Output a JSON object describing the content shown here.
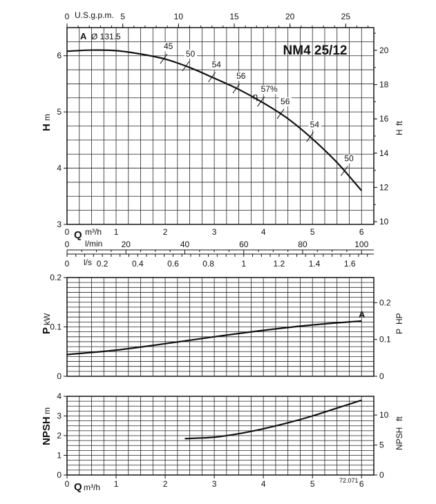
{
  "chart_data": [
    {
      "type": "line",
      "id": "head",
      "title": "NM4 25/12",
      "impeller_label": "A",
      "impeller_diameter": "Ø 131.5",
      "ylabel": "H",
      "yunit": "m",
      "ylim": [
        3,
        6.5
      ],
      "yticks": [
        "3",
        "4",
        "5",
        "6"
      ],
      "y2label": "H",
      "y2unit": "ft",
      "y2ticks": [
        "10",
        "12",
        "14",
        "16",
        "18",
        "20"
      ],
      "xlim": [
        0,
        6.25
      ],
      "top_axis_label": "U.S.g.p.m.",
      "top_axis_ticks": [
        "0",
        "5",
        "10",
        "15",
        "20",
        "25"
      ],
      "series": [
        {
          "name": "A",
          "x": [
            0,
            0.5,
            1.0,
            1.5,
            2.0,
            2.5,
            3.0,
            3.5,
            4.0,
            4.5,
            5.0,
            5.5,
            6.0
          ],
          "y": [
            6.08,
            6.1,
            6.09,
            6.03,
            5.94,
            5.79,
            5.6,
            5.4,
            5.16,
            4.88,
            4.52,
            4.1,
            3.6
          ]
        }
      ],
      "efficiency_label": "η",
      "efficiency_marks": [
        {
          "label": "45",
          "x": 1.97
        },
        {
          "label": "50",
          "x": 2.42
        },
        {
          "label": "54",
          "x": 2.95
        },
        {
          "label": "56",
          "x": 3.45
        },
        {
          "label": "57%",
          "x": 3.95
        },
        {
          "label": "56",
          "x": 4.35
        },
        {
          "label": "54",
          "x": 4.95
        },
        {
          "label": "50",
          "x": 5.65
        }
      ]
    },
    {
      "type": "line",
      "id": "power",
      "ylabel": "P",
      "yunit": "kW",
      "ylim": [
        0,
        0.2
      ],
      "yticks": [
        "0",
        "0.1",
        "0.2"
      ],
      "y2label": "P",
      "y2unit": "HP",
      "y2ticks": [
        "0",
        "0.1",
        "0.2"
      ],
      "series": [
        {
          "name": "A",
          "x": [
            0,
            1,
            2,
            3,
            4,
            5,
            6
          ],
          "y": [
            0.044,
            0.053,
            0.066,
            0.08,
            0.093,
            0.104,
            0.112
          ]
        }
      ],
      "curve_label": "A"
    },
    {
      "type": "line",
      "id": "npsh",
      "ylabel": "NPSH",
      "yunit": "m",
      "ylim": [
        0,
        4
      ],
      "yticks": [
        "0",
        "1",
        "2",
        "3",
        "4"
      ],
      "y2label": "NPSH",
      "y2unit": "ft",
      "y2ticks": [
        "0",
        "5",
        "10"
      ],
      "series": [
        {
          "name": "NPSH",
          "x": [
            2.4,
            3.0,
            3.5,
            4.0,
            4.5,
            5.0,
            5.5,
            6.0
          ],
          "y": [
            1.85,
            1.92,
            2.1,
            2.35,
            2.65,
            3.0,
            3.4,
            3.8
          ]
        }
      ],
      "code": "72.071"
    }
  ],
  "flow_axes": {
    "q_label": "Q",
    "q_unit": "m³/h",
    "q_ticks": [
      "0",
      "1",
      "2",
      "3",
      "4",
      "5",
      "6"
    ],
    "lmin_unit": "l/min",
    "lmin_ticks": [
      "0",
      "20",
      "40",
      "60",
      "80",
      "100"
    ],
    "ls_unit": "l/s",
    "ls_ticks": [
      "0",
      "0.2",
      "0.4",
      "0.6",
      "0.8",
      "1",
      "1.2",
      "1.4",
      "1.6"
    ]
  }
}
